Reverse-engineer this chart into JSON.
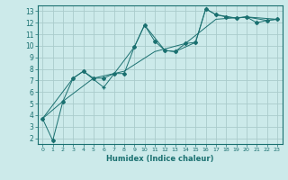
{
  "xlabel": "Humidex (Indice chaleur)",
  "bg_color": "#cceaea",
  "grid_color": "#aacccc",
  "line_color": "#1a7070",
  "xlim": [
    -0.5,
    23.5
  ],
  "ylim": [
    1.5,
    13.5
  ],
  "xticks": [
    0,
    1,
    2,
    3,
    4,
    5,
    6,
    7,
    8,
    9,
    10,
    11,
    12,
    13,
    14,
    15,
    16,
    17,
    18,
    19,
    20,
    21,
    22,
    23
  ],
  "yticks": [
    2,
    3,
    4,
    5,
    6,
    7,
    8,
    9,
    10,
    11,
    12,
    13
  ],
  "series1": [
    [
      0,
      3.7
    ],
    [
      1,
      1.8
    ],
    [
      2,
      5.2
    ],
    [
      3,
      7.2
    ],
    [
      4,
      7.8
    ],
    [
      5,
      7.2
    ],
    [
      6,
      7.2
    ],
    [
      7,
      7.6
    ],
    [
      8,
      7.6
    ],
    [
      9,
      9.9
    ],
    [
      10,
      11.8
    ],
    [
      11,
      10.4
    ],
    [
      12,
      9.6
    ],
    [
      13,
      9.5
    ],
    [
      14,
      10.2
    ],
    [
      15,
      10.3
    ],
    [
      16,
      13.2
    ],
    [
      17,
      12.7
    ],
    [
      18,
      12.5
    ],
    [
      19,
      12.4
    ],
    [
      20,
      12.5
    ],
    [
      21,
      12.0
    ],
    [
      22,
      12.2
    ],
    [
      23,
      12.3
    ]
  ],
  "series2": [
    [
      0,
      3.7
    ],
    [
      3,
      7.2
    ],
    [
      4,
      7.8
    ],
    [
      6,
      6.4
    ],
    [
      9,
      9.9
    ],
    [
      10,
      11.8
    ],
    [
      12,
      9.6
    ],
    [
      13,
      9.5
    ],
    [
      15,
      10.3
    ],
    [
      16,
      13.2
    ],
    [
      17,
      12.7
    ],
    [
      19,
      12.4
    ],
    [
      20,
      12.5
    ],
    [
      22,
      12.2
    ],
    [
      23,
      12.3
    ]
  ],
  "series3": [
    [
      0,
      3.7
    ],
    [
      2,
      5.2
    ],
    [
      5,
      7.2
    ],
    [
      8,
      7.8
    ],
    [
      11,
      9.5
    ],
    [
      14,
      10.2
    ],
    [
      17,
      12.3
    ],
    [
      20,
      12.5
    ],
    [
      23,
      12.3
    ]
  ]
}
